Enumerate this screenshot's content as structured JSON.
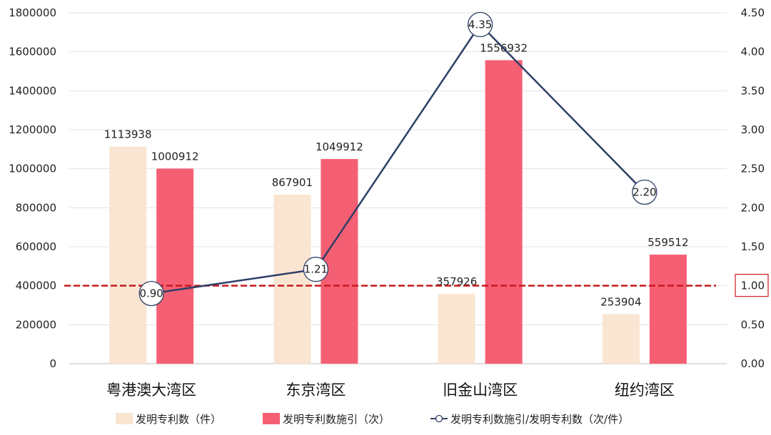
{
  "chart_data": {
    "type": "bar",
    "categories": [
      "粤港澳大湾区",
      "东京湾区",
      "旧金山湾区",
      "纽约湾区"
    ],
    "series": [
      {
        "name": "发明专利数（件）",
        "type": "bar",
        "axis": "left",
        "color": "#f9e5d2",
        "values": [
          1113938,
          867901,
          357926,
          253904
        ]
      },
      {
        "name": "发明专利数施引（次）",
        "type": "bar",
        "axis": "left",
        "color": "#f55f73",
        "values": [
          1000912,
          1049912,
          1556932,
          559512
        ]
      },
      {
        "name": "发明专利数施引/发明专利数（次/件）",
        "type": "line",
        "axis": "right",
        "color": "#2e3f66",
        "values": [
          0.9,
          1.21,
          4.35,
          2.2
        ],
        "labels": [
          "0.90",
          "1.21",
          "4.35",
          "2.20"
        ]
      }
    ],
    "y_left": {
      "min": 0,
      "max": 1800000,
      "ticks": [
        "0",
        "200000",
        "400000",
        "600000",
        "800000",
        "1000000",
        "1200000",
        "1400000",
        "1600000",
        "1800000"
      ]
    },
    "y_right": {
      "min": 0,
      "max": 4.5,
      "ticks": [
        "0.00",
        "0.50",
        "1.00",
        "1.50",
        "2.00",
        "2.50",
        "3.00",
        "3.50",
        "4.00",
        "4.50"
      ]
    },
    "reference_line": {
      "value": 1.0,
      "axis": "right",
      "color": "#c8191e",
      "style": "dashed",
      "label": "1.00"
    },
    "legend_position": "bottom",
    "grid": true
  }
}
